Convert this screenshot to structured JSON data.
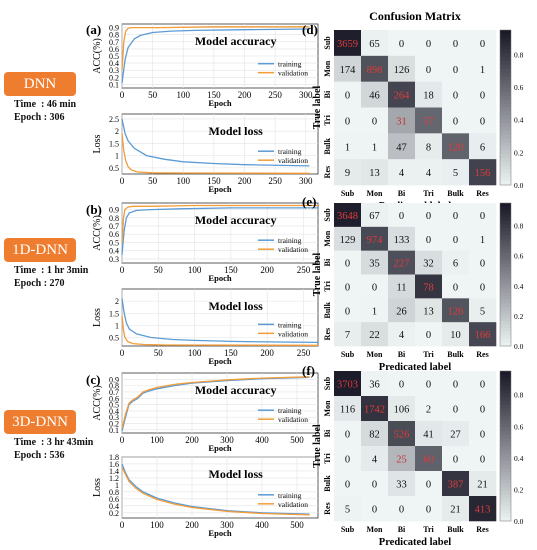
{
  "models": [
    {
      "name": "DNN",
      "time_label": "Time  : 46 min",
      "epoch_label": "Epoch : 306"
    },
    {
      "name": "1D-DNN",
      "time_label": "Time  : 1 hr 3min",
      "epoch_label": "Epoch : 270"
    },
    {
      "name": "3D-DNN",
      "time_label": "Time  : 3 hr 43min",
      "epoch_label": "Epoch : 536"
    }
  ],
  "chart_data": [
    {
      "panel": "(a)",
      "type": "line",
      "title": "Model accuracy",
      "xlabel": "Epoch",
      "ylabel": "ACC(%)",
      "xlim": [
        0,
        320
      ],
      "ylim": [
        0.05,
        0.95
      ],
      "xticks": [
        0,
        50,
        100,
        150,
        200,
        250,
        300
      ],
      "yticks": [
        0.1,
        0.2,
        0.3,
        0.4,
        0.5,
        0.6,
        0.7,
        0.8,
        0.9
      ],
      "legend": "center-right",
      "series": [
        {
          "name": "training",
          "color": "#5b9bd5",
          "x": [
            0,
            5,
            10,
            20,
            30,
            50,
            80,
            120,
            200,
            306
          ],
          "y": [
            0.12,
            0.45,
            0.62,
            0.74,
            0.79,
            0.83,
            0.85,
            0.86,
            0.87,
            0.88
          ]
        },
        {
          "name": "validation",
          "color": "#f39c38",
          "x": [
            0,
            3,
            6,
            10,
            15,
            30,
            60,
            150,
            306
          ],
          "y": [
            0.3,
            0.7,
            0.85,
            0.89,
            0.9,
            0.9,
            0.9,
            0.91,
            0.91
          ]
        }
      ]
    },
    {
      "panel": "",
      "type": "line",
      "title": "Model loss",
      "xlabel": "Epoch",
      "ylabel": "Loss",
      "xlim": [
        0,
        320
      ],
      "ylim": [
        0.25,
        2.7
      ],
      "xticks": [
        0,
        50,
        100,
        150,
        200,
        250,
        300
      ],
      "yticks": [
        0.5,
        1.0,
        1.5,
        2.0,
        2.5
      ],
      "legend": "center-right",
      "series": [
        {
          "name": "training",
          "color": "#5b9bd5",
          "x": [
            0,
            5,
            10,
            20,
            40,
            70,
            100,
            150,
            200,
            306
          ],
          "y": [
            2.5,
            1.9,
            1.6,
            1.3,
            1.0,
            0.85,
            0.75,
            0.68,
            0.63,
            0.58
          ]
        },
        {
          "name": "validation",
          "color": "#f39c38",
          "x": [
            0,
            3,
            6,
            10,
            15,
            25,
            50,
            100,
            306
          ],
          "y": [
            1.9,
            1.2,
            0.8,
            0.55,
            0.42,
            0.33,
            0.3,
            0.29,
            0.28
          ]
        }
      ]
    },
    {
      "panel": "(b)",
      "type": "line",
      "title": "Model accuracy",
      "xlabel": "Epoch",
      "ylabel": "ACC(%)",
      "xlim": [
        0,
        270
      ],
      "ylim": [
        0.25,
        0.98
      ],
      "xticks": [
        0,
        50,
        100,
        150,
        200,
        250
      ],
      "yticks": [
        0.3,
        0.4,
        0.5,
        0.6,
        0.7,
        0.8,
        0.9
      ],
      "legend": "center-right",
      "series": [
        {
          "name": "training",
          "color": "#5b9bd5",
          "x": [
            0,
            3,
            6,
            10,
            20,
            40,
            80,
            150,
            270
          ],
          "y": [
            0.35,
            0.65,
            0.8,
            0.86,
            0.89,
            0.9,
            0.91,
            0.92,
            0.92
          ]
        },
        {
          "name": "validation",
          "color": "#f39c38",
          "x": [
            0,
            2,
            4,
            8,
            15,
            40,
            100,
            270
          ],
          "y": [
            0.5,
            0.8,
            0.9,
            0.93,
            0.94,
            0.94,
            0.95,
            0.95
          ]
        }
      ]
    },
    {
      "panel": "",
      "type": "line",
      "title": "Model loss",
      "xlabel": "Epoch",
      "ylabel": "Loss",
      "xlim": [
        0,
        270
      ],
      "ylim": [
        0.15,
        2.5
      ],
      "xticks": [
        0,
        50,
        100,
        150,
        200,
        250
      ],
      "yticks": [
        0.5,
        1.0,
        1.5,
        2.0
      ],
      "legend": "center-right",
      "series": [
        {
          "name": "training",
          "color": "#5b9bd5",
          "x": [
            0,
            3,
            6,
            10,
            20,
            40,
            70,
            100,
            150,
            200,
            270
          ],
          "y": [
            2.1,
            1.5,
            1.1,
            0.85,
            0.65,
            0.5,
            0.42,
            0.38,
            0.34,
            0.32,
            0.3
          ]
        },
        {
          "name": "validation",
          "color": "#f39c38",
          "x": [
            0,
            2,
            4,
            8,
            15,
            30,
            60,
            270
          ],
          "y": [
            1.4,
            0.8,
            0.5,
            0.33,
            0.25,
            0.21,
            0.19,
            0.18
          ]
        }
      ]
    },
    {
      "panel": "(c)",
      "type": "line",
      "title": "Model accuracy",
      "xlabel": "Epoch",
      "ylabel": "ACC(%)",
      "xlim": [
        0,
        560
      ],
      "ylim": [
        0.05,
        1.0
      ],
      "xticks": [
        0,
        100,
        200,
        300,
        400,
        500
      ],
      "yticks": [
        0.1,
        0.2,
        0.3,
        0.4,
        0.5,
        0.6,
        0.7,
        0.8,
        0.9
      ],
      "legend": "center-right",
      "series": [
        {
          "name": "training",
          "color": "#5b9bd5",
          "x": [
            0,
            10,
            20,
            30,
            45,
            60,
            80,
            100,
            150,
            200,
            300,
            400,
            536
          ],
          "y": [
            0.08,
            0.3,
            0.5,
            0.55,
            0.6,
            0.68,
            0.72,
            0.75,
            0.8,
            0.84,
            0.88,
            0.91,
            0.93
          ]
        },
        {
          "name": "validation",
          "color": "#f39c38",
          "x": [
            0,
            10,
            20,
            30,
            45,
            60,
            80,
            100,
            150,
            200,
            300,
            400,
            536
          ],
          "y": [
            0.12,
            0.35,
            0.52,
            0.57,
            0.62,
            0.7,
            0.74,
            0.77,
            0.82,
            0.85,
            0.89,
            0.92,
            0.94
          ]
        }
      ]
    },
    {
      "panel": "",
      "type": "line",
      "title": "Model loss",
      "xlabel": "Epoch",
      "ylabel": "Loss",
      "xlim": [
        0,
        560
      ],
      "ylim": [
        0.05,
        1.8
      ],
      "xticks": [
        0,
        100,
        200,
        300,
        400,
        500
      ],
      "yticks": [
        0.2,
        0.4,
        0.6,
        0.8,
        1.0,
        1.2,
        1.4,
        1.6,
        1.8
      ],
      "legend": "center-right",
      "series": [
        {
          "name": "training",
          "color": "#5b9bd5",
          "x": [
            0,
            10,
            20,
            40,
            60,
            100,
            150,
            200,
            300,
            400,
            536
          ],
          "y": [
            1.6,
            1.35,
            1.15,
            0.95,
            0.8,
            0.62,
            0.48,
            0.38,
            0.26,
            0.2,
            0.16
          ]
        },
        {
          "name": "validation",
          "color": "#f39c38",
          "x": [
            0,
            10,
            20,
            40,
            60,
            100,
            150,
            200,
            300,
            400,
            536
          ],
          "y": [
            1.5,
            1.3,
            1.1,
            0.9,
            0.76,
            0.58,
            0.45,
            0.35,
            0.24,
            0.18,
            0.14
          ]
        }
      ]
    },
    {
      "panel": "(d)",
      "type": "heatmap",
      "title": "Confusion Matrix",
      "xlabel": "Predicated label",
      "ylabel": "True label",
      "labels": [
        "Sub",
        "Mon",
        "Bi",
        "Tri",
        "Bulk",
        "Res"
      ],
      "matrix": [
        [
          3659,
          65,
          0,
          0,
          0,
          0
        ],
        [
          174,
          898,
          126,
          0,
          0,
          1
        ],
        [
          0,
          46,
          264,
          18,
          0,
          0
        ],
        [
          0,
          0,
          31,
          57,
          0,
          0
        ],
        [
          1,
          1,
          47,
          8,
          128,
          6
        ],
        [
          9,
          13,
          4,
          4,
          5,
          156
        ]
      ],
      "colorbar_ticks": [
        0.0,
        0.2,
        0.4,
        0.6,
        0.8
      ]
    },
    {
      "panel": "(e)",
      "type": "heatmap",
      "title": "",
      "xlabel": "Predicated label",
      "ylabel": "True label",
      "labels": [
        "Sub",
        "Mon",
        "Bi",
        "Tri",
        "Bulk",
        "Res"
      ],
      "matrix": [
        [
          3648,
          67,
          0,
          0,
          0,
          0
        ],
        [
          129,
          974,
          133,
          0,
          0,
          1
        ],
        [
          0,
          35,
          227,
          32,
          6,
          0
        ],
        [
          0,
          0,
          11,
          78,
          0,
          0
        ],
        [
          0,
          1,
          26,
          13,
          126,
          5
        ],
        [
          7,
          22,
          4,
          0,
          10,
          166
        ]
      ],
      "colorbar_ticks": [
        0.0,
        0.2,
        0.4,
        0.6,
        0.8
      ]
    },
    {
      "panel": "(f)",
      "type": "heatmap",
      "title": "",
      "xlabel": "Predicated label",
      "ylabel": "True label",
      "labels": [
        "Sub",
        "Mon",
        "Bi",
        "Tri",
        "Bulk",
        "Res"
      ],
      "matrix": [
        [
          3703,
          36,
          0,
          0,
          0,
          0
        ],
        [
          116,
          1742,
          106,
          2,
          0,
          0
        ],
        [
          0,
          82,
          526,
          41,
          27,
          0
        ],
        [
          0,
          4,
          25,
          60,
          0,
          0
        ],
        [
          0,
          0,
          33,
          0,
          387,
          21
        ],
        [
          5,
          0,
          0,
          0,
          21,
          413
        ]
      ],
      "colorbar_ticks": [
        0.0,
        0.2,
        0.4,
        0.6,
        0.8
      ]
    }
  ]
}
